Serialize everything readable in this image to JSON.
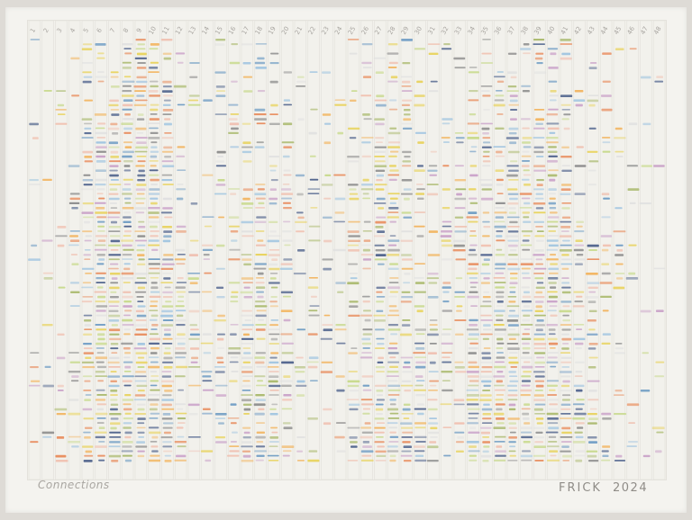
{
  "artwork": {
    "title": "Connections",
    "signature": "FRICK",
    "year": "2024"
  },
  "column_numbers": [
    "1",
    "2",
    "3",
    "4",
    "5",
    "6",
    "7",
    "8",
    "9",
    "10",
    "11",
    "12",
    "13",
    "14",
    "15",
    "16",
    "17",
    "18",
    "19",
    "20",
    "21",
    "22",
    "23",
    "24",
    "25",
    "26",
    "27",
    "28",
    "29",
    "30",
    "31",
    "32",
    "33",
    "34",
    "35",
    "36",
    "37",
    "38",
    "39",
    "40",
    "41",
    "42",
    "43",
    "44",
    "45",
    "46",
    "47",
    "48"
  ],
  "colors": {
    "paper": "#f2f1ec",
    "mat": "#f4f3ef",
    "palette": [
      "#e8d25a",
      "#f2b35c",
      "#e88a5a",
      "#9fc4e0",
      "#6f9cc4",
      "#4b5f8a",
      "#a8b86a",
      "#c9a0c8",
      "#8a8a8a",
      "#f0c0b0",
      "#c7d98a",
      "#e0e0e0"
    ]
  }
}
